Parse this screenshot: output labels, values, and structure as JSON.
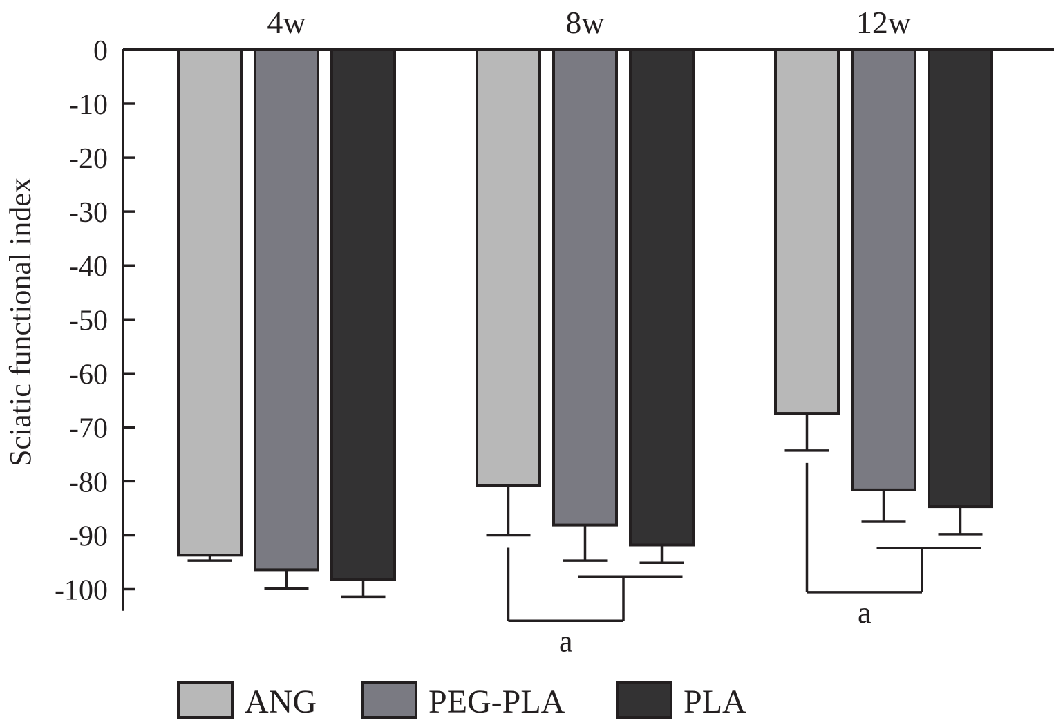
{
  "chart_data": {
    "type": "bar",
    "ylabel": "Sciatic functional index",
    "ylim": [
      -104,
      0
    ],
    "yticks": [
      0,
      -10,
      -20,
      -30,
      -40,
      -50,
      -60,
      -70,
      -80,
      -90,
      -100
    ],
    "categories": [
      "4w",
      "8w",
      "12w"
    ],
    "legend_position": "bottom",
    "series": [
      {
        "name": "ANG",
        "color": "#b8b8b8",
        "values": [
          -93.7,
          -80.8,
          -67.4
        ],
        "errors": [
          1.0,
          9.2,
          6.9
        ]
      },
      {
        "name": "PEG-PLA",
        "color": "#7a7a82",
        "values": [
          -96.4,
          -88.1,
          -81.6
        ],
        "errors": [
          3.5,
          6.6,
          5.9
        ]
      },
      {
        "name": "PLA",
        "color": "#333233",
        "values": [
          -98.2,
          -91.8,
          -84.7
        ],
        "errors": [
          3.2,
          3.3,
          5.1
        ]
      }
    ],
    "annotations": [
      {
        "category": "8w",
        "label": "a"
      },
      {
        "category": "12w",
        "label": "a"
      }
    ]
  }
}
